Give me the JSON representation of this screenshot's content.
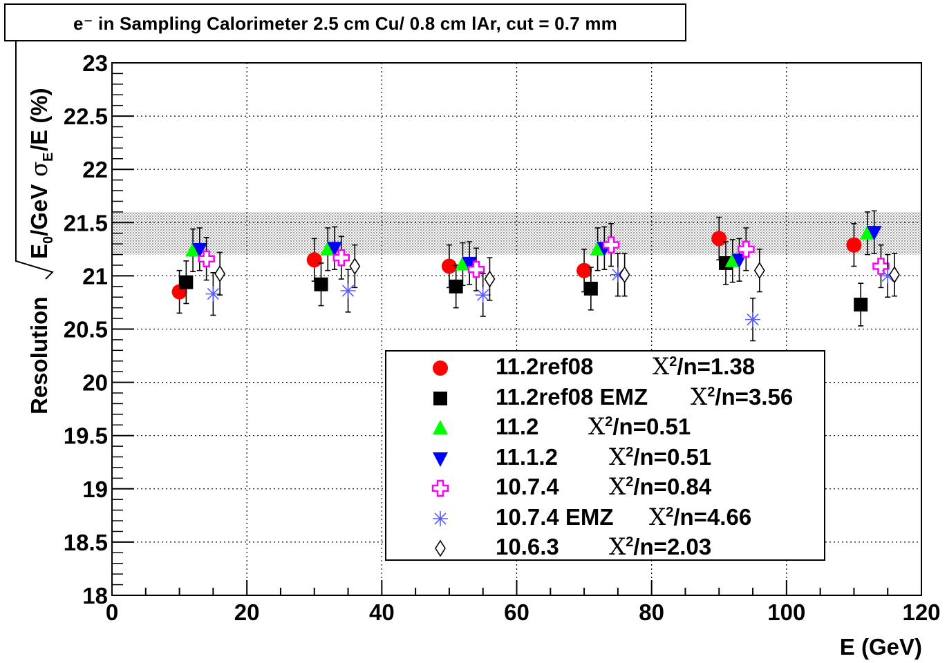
{
  "title": "e⁻ in Sampling Calorimeter 2.5 cm Cu/ 0.8 cm lAr, cut = 0.7 mm",
  "chart_data": {
    "type": "scatter",
    "xlabel": "E (GeV)",
    "ylabel": "Resolution √E₀/GeV σ_E/E (%)",
    "xlim": [
      0,
      120
    ],
    "ylim": [
      18,
      23
    ],
    "x_ticks": [
      "0",
      "20",
      "40",
      "60",
      "80",
      "100",
      "120"
    ],
    "y_ticks": [
      "18",
      "18.5",
      "19",
      "19.5",
      "20",
      "20.5",
      "21",
      "21.5",
      "22",
      "22.5",
      "23"
    ],
    "grid": true,
    "band": {
      "ymin": 21.2,
      "ymax": 21.6,
      "color": "#d3d3d3"
    },
    "legend_position": "bottom-right",
    "series": [
      {
        "name": "11.2ref08",
        "chi2": "1.38",
        "marker": "circle",
        "color": "#ff0000",
        "x": [
          10,
          30,
          50,
          70,
          90,
          110
        ],
        "y": [
          20.85,
          21.15,
          21.09,
          21.05,
          21.35,
          21.29
        ],
        "err": [
          0.2,
          0.2,
          0.2,
          0.2,
          0.2,
          0.2
        ]
      },
      {
        "name": "11.2ref08 EMZ",
        "chi2": "3.56",
        "marker": "square",
        "color": "#000000",
        "x": [
          11,
          31,
          51,
          71,
          91,
          111
        ],
        "y": [
          20.94,
          20.92,
          20.9,
          20.88,
          21.12,
          20.73
        ],
        "err": [
          0.2,
          0.2,
          0.2,
          0.2,
          0.2,
          0.2
        ]
      },
      {
        "name": "11.2",
        "chi2": "0.51",
        "marker": "triangle-up",
        "color": "#00ff00",
        "x": [
          12,
          32,
          52,
          72,
          92,
          112
        ],
        "y": [
          21.24,
          21.25,
          21.11,
          21.25,
          21.14,
          21.4
        ],
        "err": [
          0.2,
          0.2,
          0.2,
          0.2,
          0.2,
          0.2
        ]
      },
      {
        "name": "11.1.2",
        "chi2": "0.51",
        "marker": "triangle-down",
        "color": "#0000ff",
        "x": [
          13,
          33,
          53,
          73,
          93,
          113
        ],
        "y": [
          21.25,
          21.26,
          21.12,
          21.26,
          21.15,
          21.41
        ],
        "err": [
          0.2,
          0.2,
          0.2,
          0.2,
          0.2,
          0.2
        ]
      },
      {
        "name": "10.7.4",
        "chi2": "0.84",
        "marker": "cross-open",
        "color": "#ff00ff",
        "x": [
          14,
          34,
          54,
          74,
          94,
          114
        ],
        "y": [
          21.16,
          21.17,
          21.06,
          21.29,
          21.25,
          21.09
        ],
        "err": [
          0.2,
          0.2,
          0.2,
          0.2,
          0.2,
          0.2
        ]
      },
      {
        "name": "10.7.4 EMZ",
        "chi2": "4.66",
        "marker": "star",
        "color": "#5a5aff",
        "x": [
          15,
          35,
          55,
          75,
          95,
          115
        ],
        "y": [
          20.83,
          20.86,
          20.82,
          21.01,
          20.59,
          21.0
        ],
        "err": [
          0.2,
          0.2,
          0.2,
          0.2,
          0.2,
          0.2
        ]
      },
      {
        "name": "10.6.3",
        "chi2": "2.03",
        "marker": "diamond-open",
        "color": "#000000",
        "x": [
          16,
          36,
          56,
          76,
          96,
          116
        ],
        "y": [
          21.02,
          21.09,
          20.97,
          21.01,
          21.05,
          21.01
        ],
        "err": [
          0.2,
          0.2,
          0.2,
          0.2,
          0.2,
          0.2
        ]
      }
    ]
  }
}
